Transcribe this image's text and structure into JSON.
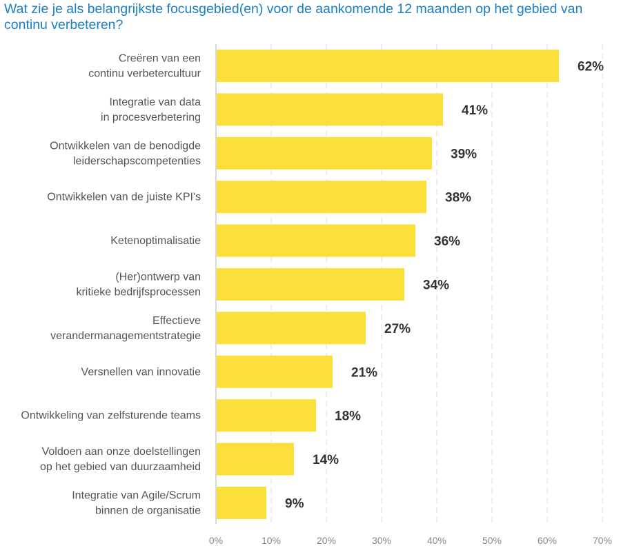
{
  "chart_data": {
    "type": "bar",
    "orientation": "horizontal",
    "title": "Wat zie je als belangrijkste focusgebied(en) voor de aankomende 12 maanden op het gebied van continu verbeteren?",
    "categories": [
      [
        "Creëren van een",
        "continu verbetercultuur"
      ],
      [
        "Integratie van data",
        "in procesverbetering"
      ],
      [
        "Ontwikkelen van de benodigde",
        "leiderschapscompetenties"
      ],
      [
        "Ontwikkelen van de juiste KPI's"
      ],
      [
        "Ketenoptimalisatie"
      ],
      [
        "(Her)ontwerp van",
        "kritieke bedrijfsprocessen"
      ],
      [
        "Effectieve",
        "verandermanagementstrategie"
      ],
      [
        "Versnellen van innovatie"
      ],
      [
        "Ontwikkeling van zelfsturende teams"
      ],
      [
        "Voldoen aan onze doelstellingen",
        "op het gebied  van duurzaamheid"
      ],
      [
        "Integratie van Agile/Scrum",
        "binnen de organisatie"
      ]
    ],
    "values": [
      62,
      41,
      39,
      38,
      36,
      34,
      27,
      21,
      18,
      14,
      9
    ],
    "data_labels": [
      "62%",
      "41%",
      "39%",
      "38%",
      "36%",
      "34%",
      "27%",
      "21%",
      "18%",
      "14%",
      "9%"
    ],
    "xlim": [
      0,
      70
    ],
    "xticks": [
      "0%",
      "10%",
      "20%",
      "30%",
      "40%",
      "50%",
      "60%",
      "70%"
    ],
    "grid": true,
    "colors": {
      "bar": "#fbe03b",
      "title": "#1a7fc4",
      "label": "#555555",
      "value": "#333333"
    }
  }
}
